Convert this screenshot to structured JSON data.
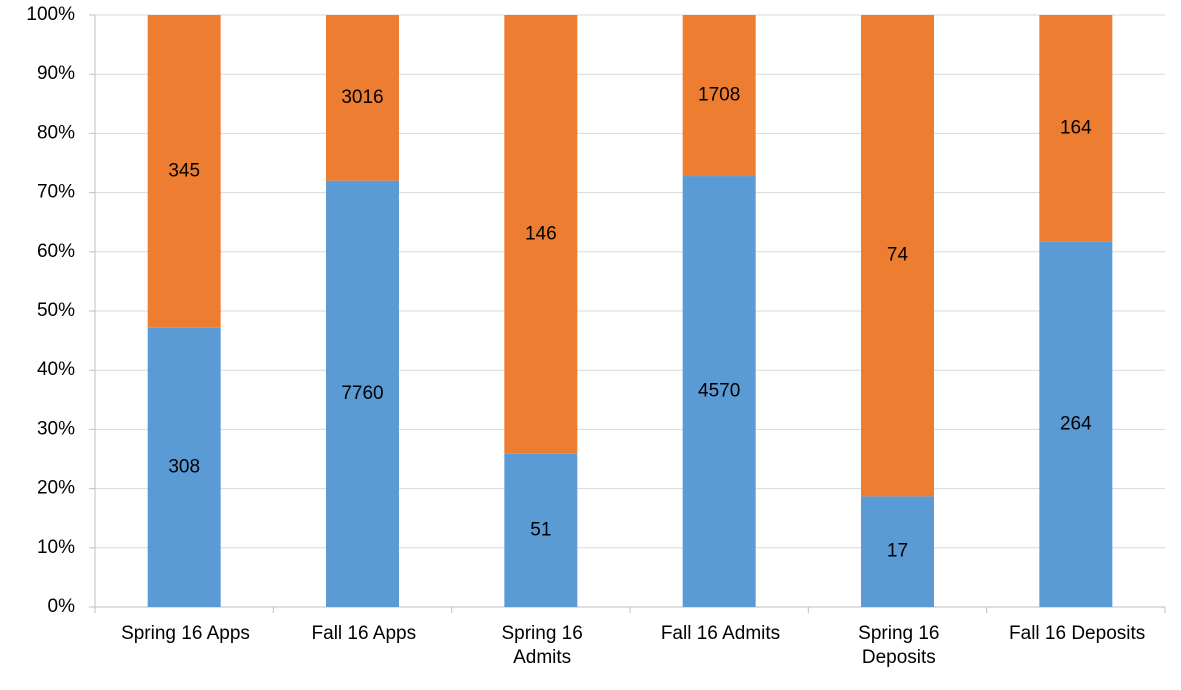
{
  "chart_data": {
    "type": "bar",
    "stacking": "percent",
    "categories": [
      "Spring 16 Apps",
      "Fall 16 Apps",
      "Spring 16\nAdmits",
      "Fall 16 Admits",
      "Spring 16\nDeposits",
      "Fall 16 Deposits"
    ],
    "series": [
      {
        "color": "#5b9bd5",
        "values": [
          308,
          7760,
          51,
          4570,
          17,
          264
        ]
      },
      {
        "color": "#ed7d31",
        "values": [
          345,
          3016,
          146,
          1708,
          74,
          164
        ]
      }
    ],
    "ylim": [
      0,
      100
    ],
    "yticks": [
      {
        "value": 0,
        "label": "0%"
      },
      {
        "value": 10,
        "label": "10%"
      },
      {
        "value": 20,
        "label": "20%"
      },
      {
        "value": 30,
        "label": "30%"
      },
      {
        "value": 40,
        "label": "40%"
      },
      {
        "value": 50,
        "label": "50%"
      },
      {
        "value": 60,
        "label": "60%"
      },
      {
        "value": 70,
        "label": "70%"
      },
      {
        "value": 80,
        "label": "80%"
      },
      {
        "value": 90,
        "label": "90%"
      },
      {
        "value": 100,
        "label": "100%"
      }
    ],
    "grid": true
  }
}
